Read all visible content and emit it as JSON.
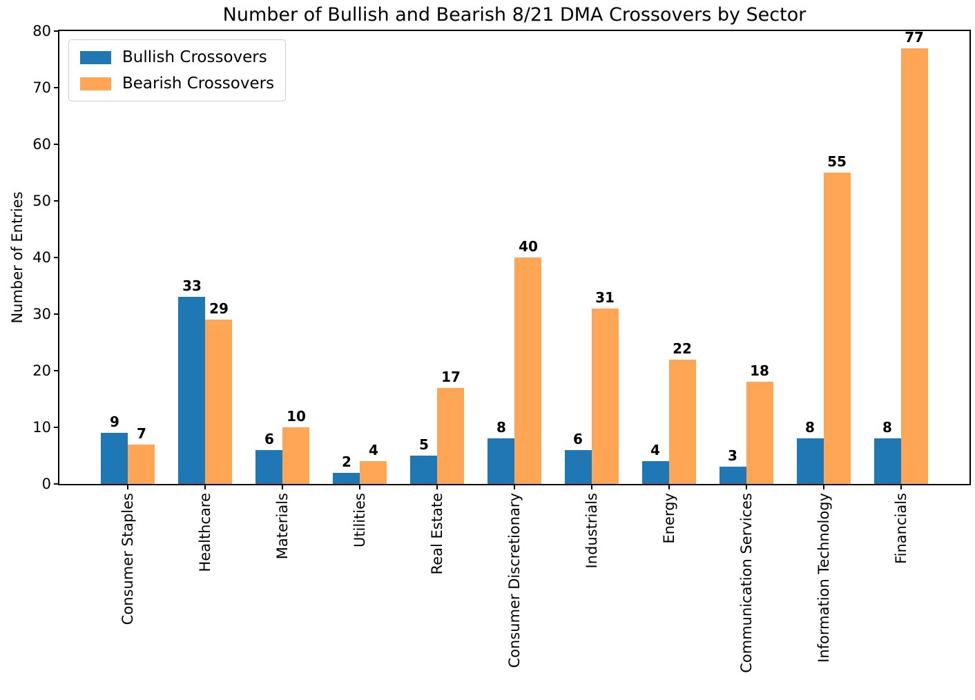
{
  "title": "Number of Bullish and Bearish 8/21 DMA Crossovers by Sector",
  "chart_data": {
    "type": "bar",
    "title": "Number of Bullish and Bearish 8/21 DMA Crossovers by Sector",
    "categories": [
      "Consumer Staples",
      "Healthcare",
      "Materials",
      "Utilities",
      "Real Estate",
      "Consumer Discretionary",
      "Industrials",
      "Energy",
      "Communication Services",
      "Information Technology",
      "Financials"
    ],
    "series": [
      {
        "name": "Bullish Crossovers",
        "color": "#1f77b4",
        "values": [
          9,
          33,
          6,
          2,
          5,
          8,
          6,
          4,
          3,
          8,
          8
        ]
      },
      {
        "name": "Bearish Crossovers",
        "color": "#ffa656",
        "values": [
          7,
          29,
          10,
          4,
          17,
          40,
          31,
          22,
          18,
          55,
          77
        ]
      }
    ],
    "xlabel": "",
    "ylabel": "Number of Entries",
    "ylim": [
      0,
      80
    ],
    "yticks": [
      0,
      10,
      20,
      30,
      40,
      50,
      60,
      70,
      80
    ],
    "grid": false,
    "legend_position": "upper left",
    "bar_value_labels": true,
    "x_tick_rotation": 90
  }
}
